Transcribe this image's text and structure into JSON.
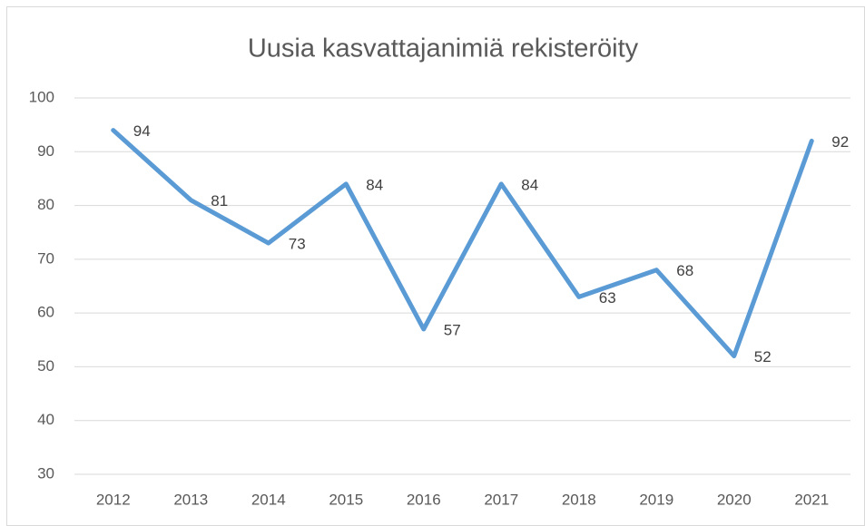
{
  "chart_data": {
    "type": "line",
    "title": "Uusia kasvattajanimiä rekisteröity",
    "categories": [
      "2012",
      "2013",
      "2014",
      "2015",
      "2016",
      "2017",
      "2018",
      "2019",
      "2020",
      "2021"
    ],
    "values": [
      94,
      81,
      73,
      84,
      57,
      84,
      63,
      68,
      52,
      92
    ],
    "color": "#5b9bd5",
    "ylim": [
      30,
      100
    ],
    "yticks": [
      30,
      40,
      50,
      60,
      70,
      80,
      90,
      100
    ],
    "grid": true
  }
}
